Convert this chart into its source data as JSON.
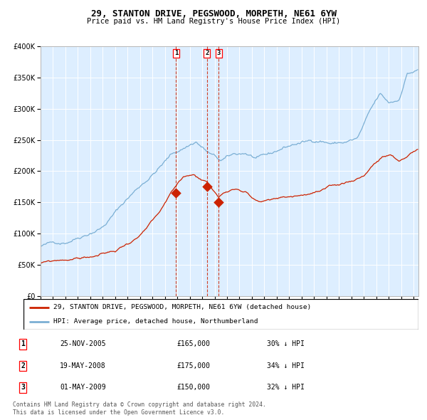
{
  "title": "29, STANTON DRIVE, PEGSWOOD, MORPETH, NE61 6YW",
  "subtitle": "Price paid vs. HM Land Registry's House Price Index (HPI)",
  "legend_line1": "29, STANTON DRIVE, PEGSWOOD, MORPETH, NE61 6YW (detached house)",
  "legend_line2": "HPI: Average price, detached house, Northumberland",
  "footer_line1": "Contains HM Land Registry data © Crown copyright and database right 2024.",
  "footer_line2": "This data is licensed under the Open Government Licence v3.0.",
  "transactions": [
    {
      "label": "1",
      "date": "25-NOV-2005",
      "price": 165000,
      "pct": "30% ↓ HPI",
      "x_year": 2005.9
    },
    {
      "label": "2",
      "date": "19-MAY-2008",
      "price": 175000,
      "pct": "34% ↓ HPI",
      "x_year": 2008.38
    },
    {
      "label": "3",
      "date": "01-MAY-2009",
      "price": 150000,
      "pct": "32% ↓ HPI",
      "x_year": 2009.33
    }
  ],
  "hpi_color": "#7bafd4",
  "price_color": "#cc2200",
  "background_color": "#ddeeff",
  "grid_color": "#ffffff",
  "ylim": [
    0,
    400000
  ],
  "xlim_start": 1995.0,
  "xlim_end": 2025.4,
  "yticks": [
    0,
    50000,
    100000,
    150000,
    200000,
    250000,
    300000,
    350000,
    400000
  ]
}
